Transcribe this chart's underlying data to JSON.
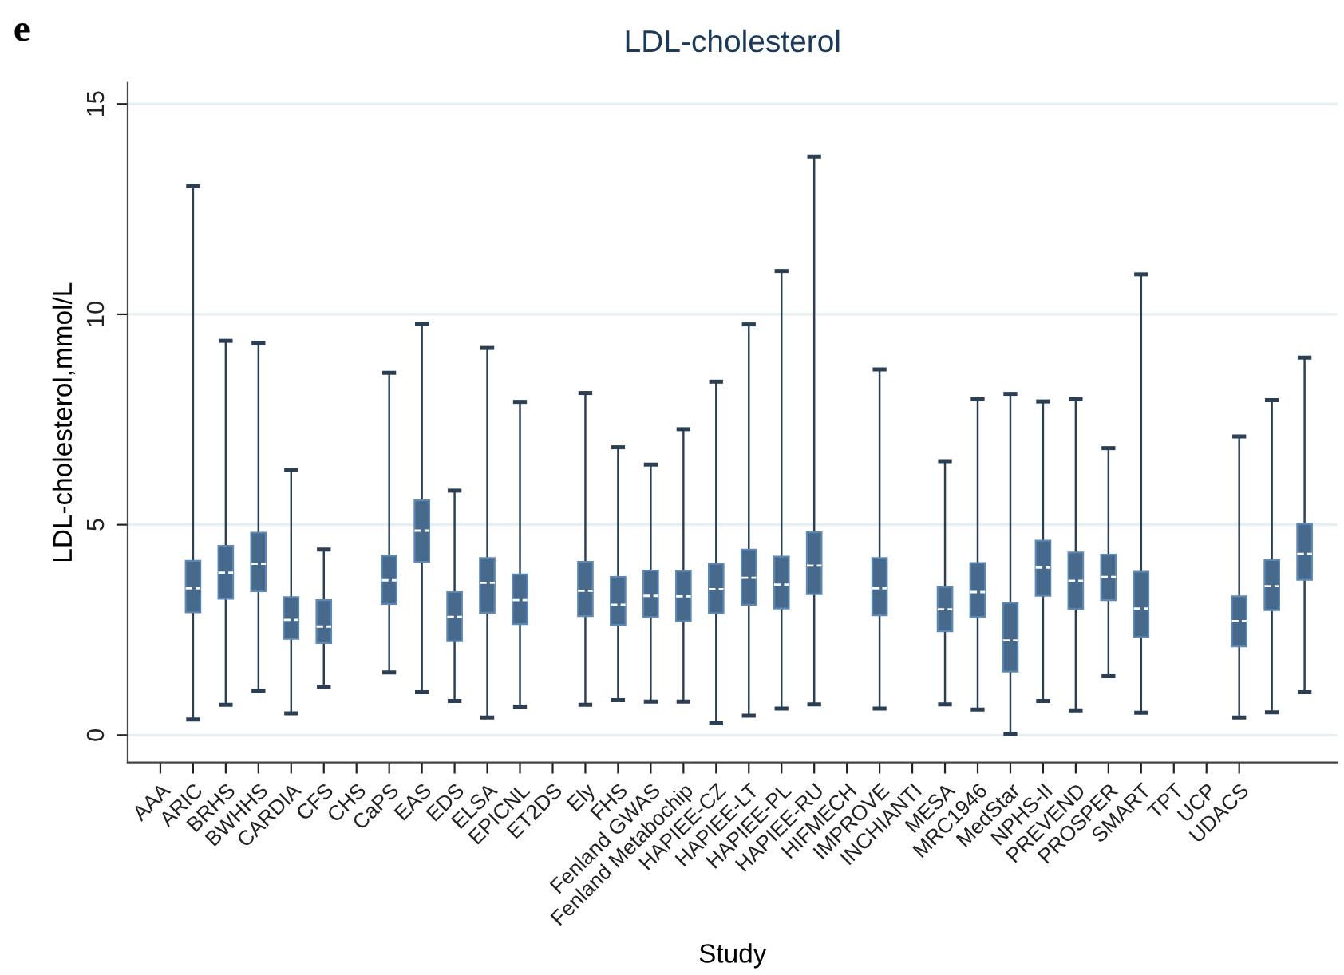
{
  "chart_data": {
    "type": "box",
    "title": "LDL-cholesterol",
    "xlabel": "Study",
    "ylabel": "LDL-cholesterol,mmol/L",
    "annotations": [
      "e"
    ],
    "categories": [
      "AAA",
      "ARIC",
      "BRHS",
      "BWHHS",
      "CARDIA",
      "CFS",
      "CHS",
      "CaPS",
      "EAS",
      "EDS",
      "ELSA",
      "EPICNL",
      "ET2DS",
      "Ely",
      "FHS",
      "Fenland GWAS",
      "Fenland Metabochip",
      "HAPIEE-CZ",
      "HAPIEE-LT",
      "HAPIEE-PL",
      "HAPIEE-RU",
      "HIFMECH",
      "IMPROVE",
      "INCHIANTI",
      "MESA",
      "MRC1946",
      "MedStar",
      "NPHS-II",
      "PREVEND",
      "PROSPER",
      "SMART",
      "TPT",
      "UCP",
      "UDACS",
      null,
      null
    ],
    "ylim": [
      -0.65,
      15.5
    ],
    "yticks": [
      0,
      5,
      10,
      15
    ],
    "grid": "y",
    "series": [
      {
        "color": "#47698c",
        "boxes": [
          null,
          {
            "low": 0.37,
            "q1": 2.92,
            "median": 3.49,
            "q3": 4.14,
            "high": 13.04
          },
          {
            "low": 0.72,
            "q1": 3.24,
            "median": 3.86,
            "q3": 4.5,
            "high": 9.37
          },
          {
            "low": 1.05,
            "q1": 3.42,
            "median": 4.07,
            "q3": 4.81,
            "high": 9.32
          },
          {
            "low": 0.52,
            "q1": 2.29,
            "median": 2.74,
            "q3": 3.28,
            "high": 6.3
          },
          {
            "low": 1.15,
            "q1": 2.19,
            "median": 2.58,
            "q3": 3.21,
            "high": 4.41
          },
          null,
          {
            "low": 1.49,
            "q1": 3.12,
            "median": 3.68,
            "q3": 4.26,
            "high": 8.61
          },
          {
            "low": 1.02,
            "q1": 4.12,
            "median": 4.86,
            "q3": 5.58,
            "high": 9.78
          },
          {
            "low": 0.81,
            "q1": 2.23,
            "median": 2.81,
            "q3": 3.4,
            "high": 5.81
          },
          {
            "low": 0.42,
            "q1": 2.91,
            "median": 3.62,
            "q3": 4.21,
            "high": 9.2
          },
          {
            "low": 0.68,
            "q1": 2.64,
            "median": 3.21,
            "q3": 3.82,
            "high": 7.92
          },
          null,
          {
            "low": 0.72,
            "q1": 2.83,
            "median": 3.43,
            "q3": 4.12,
            "high": 8.13
          },
          {
            "low": 0.83,
            "q1": 2.62,
            "median": 3.1,
            "q3": 3.76,
            "high": 6.84
          },
          {
            "low": 0.8,
            "q1": 2.81,
            "median": 3.31,
            "q3": 3.91,
            "high": 6.43
          },
          {
            "low": 0.8,
            "q1": 2.71,
            "median": 3.3,
            "q3": 3.9,
            "high": 7.27
          },
          {
            "low": 0.28,
            "q1": 2.9,
            "median": 3.47,
            "q3": 4.07,
            "high": 8.4
          },
          {
            "low": 0.46,
            "q1": 3.1,
            "median": 3.74,
            "q3": 4.41,
            "high": 9.76
          },
          {
            "low": 0.63,
            "q1": 3.01,
            "median": 3.58,
            "q3": 4.24,
            "high": 11.03
          },
          {
            "low": 0.73,
            "q1": 3.35,
            "median": 4.03,
            "q3": 4.82,
            "high": 13.75
          },
          null,
          {
            "low": 0.63,
            "q1": 2.85,
            "median": 3.49,
            "q3": 4.21,
            "high": 8.69
          },
          null,
          {
            "low": 0.73,
            "q1": 2.47,
            "median": 2.99,
            "q3": 3.52,
            "high": 6.51
          },
          {
            "low": 0.61,
            "q1": 2.81,
            "median": 3.4,
            "q3": 4.09,
            "high": 7.98
          },
          {
            "low": 0.03,
            "q1": 1.51,
            "median": 2.25,
            "q3": 3.14,
            "high": 8.11
          },
          {
            "low": 0.81,
            "q1": 3.31,
            "median": 3.98,
            "q3": 4.62,
            "high": 7.93
          },
          {
            "low": 0.59,
            "q1": 3.0,
            "median": 3.67,
            "q3": 4.34,
            "high": 7.98
          },
          {
            "low": 1.4,
            "q1": 3.21,
            "median": 3.76,
            "q3": 4.29,
            "high": 6.82
          },
          {
            "low": 0.53,
            "q1": 2.33,
            "median": 3.01,
            "q3": 3.88,
            "high": 10.95
          },
          null,
          null,
          {
            "low": 0.42,
            "q1": 2.11,
            "median": 2.71,
            "q3": 3.3,
            "high": 7.1
          },
          {
            "low": 0.54,
            "q1": 2.97,
            "median": 3.54,
            "q3": 4.16,
            "high": 7.96
          },
          {
            "low": 1.02,
            "q1": 3.69,
            "median": 4.31,
            "q3": 5.02,
            "high": 8.97
          }
        ]
      }
    ]
  }
}
